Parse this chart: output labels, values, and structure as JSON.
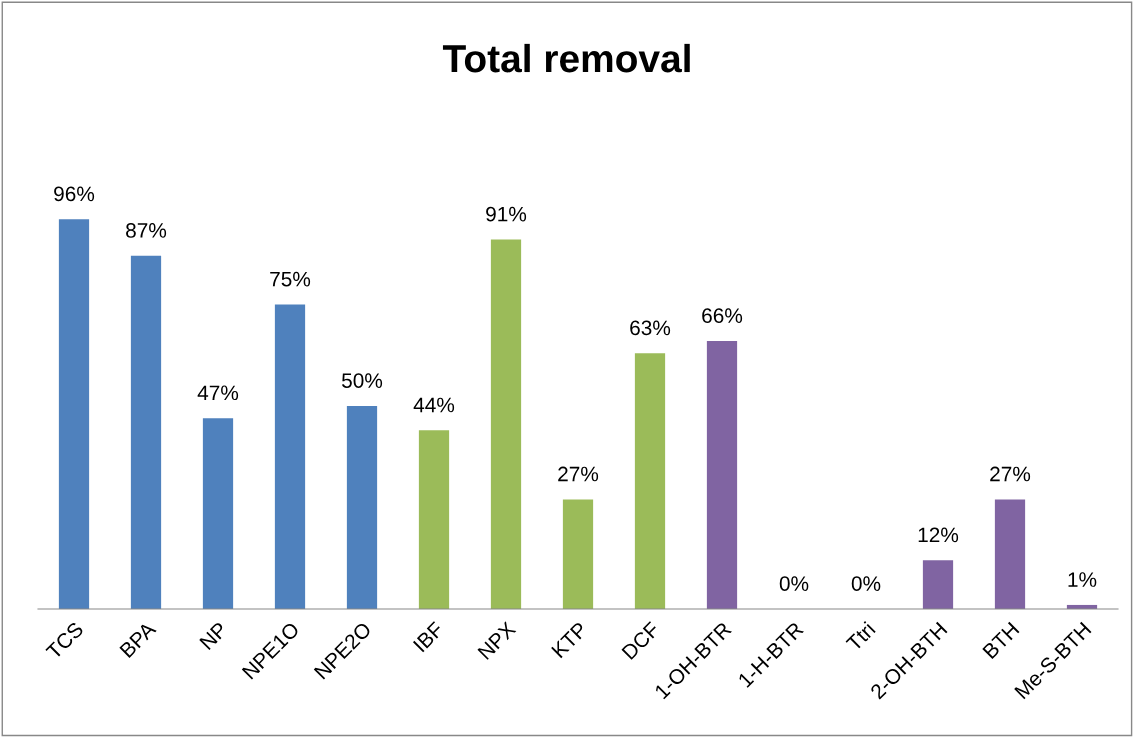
{
  "chart_data": {
    "type": "bar",
    "title": "Total removal",
    "categories": [
      "TCS",
      "BPA",
      "NP",
      "NPE1O",
      "NPE2O",
      "IBF",
      "NPX",
      "KTP",
      "DCF",
      "1-OH-BTR",
      "1-H-BTR",
      "Ttri",
      "2-OH-BTH",
      "BTH",
      "Me-S-BTH"
    ],
    "values": [
      96,
      87,
      47,
      75,
      50,
      44,
      91,
      27,
      63,
      66,
      0,
      0,
      12,
      27,
      1
    ],
    "colors": [
      "#4f81bd",
      "#4f81bd",
      "#4f81bd",
      "#4f81bd",
      "#4f81bd",
      "#9bbb59",
      "#9bbb59",
      "#9bbb59",
      "#9bbb59",
      "#8064a2",
      "#8064a2",
      "#8064a2",
      "#8064a2",
      "#8064a2",
      "#8064a2"
    ],
    "value_labels": [
      "96%",
      "87%",
      "47%",
      "75%",
      "50%",
      "44%",
      "91%",
      "27%",
      "63%",
      "66%",
      "0%",
      "0%",
      "12%",
      "27%",
      "1%"
    ],
    "tick_labels": "x",
    "grid": false,
    "legend": false
  }
}
